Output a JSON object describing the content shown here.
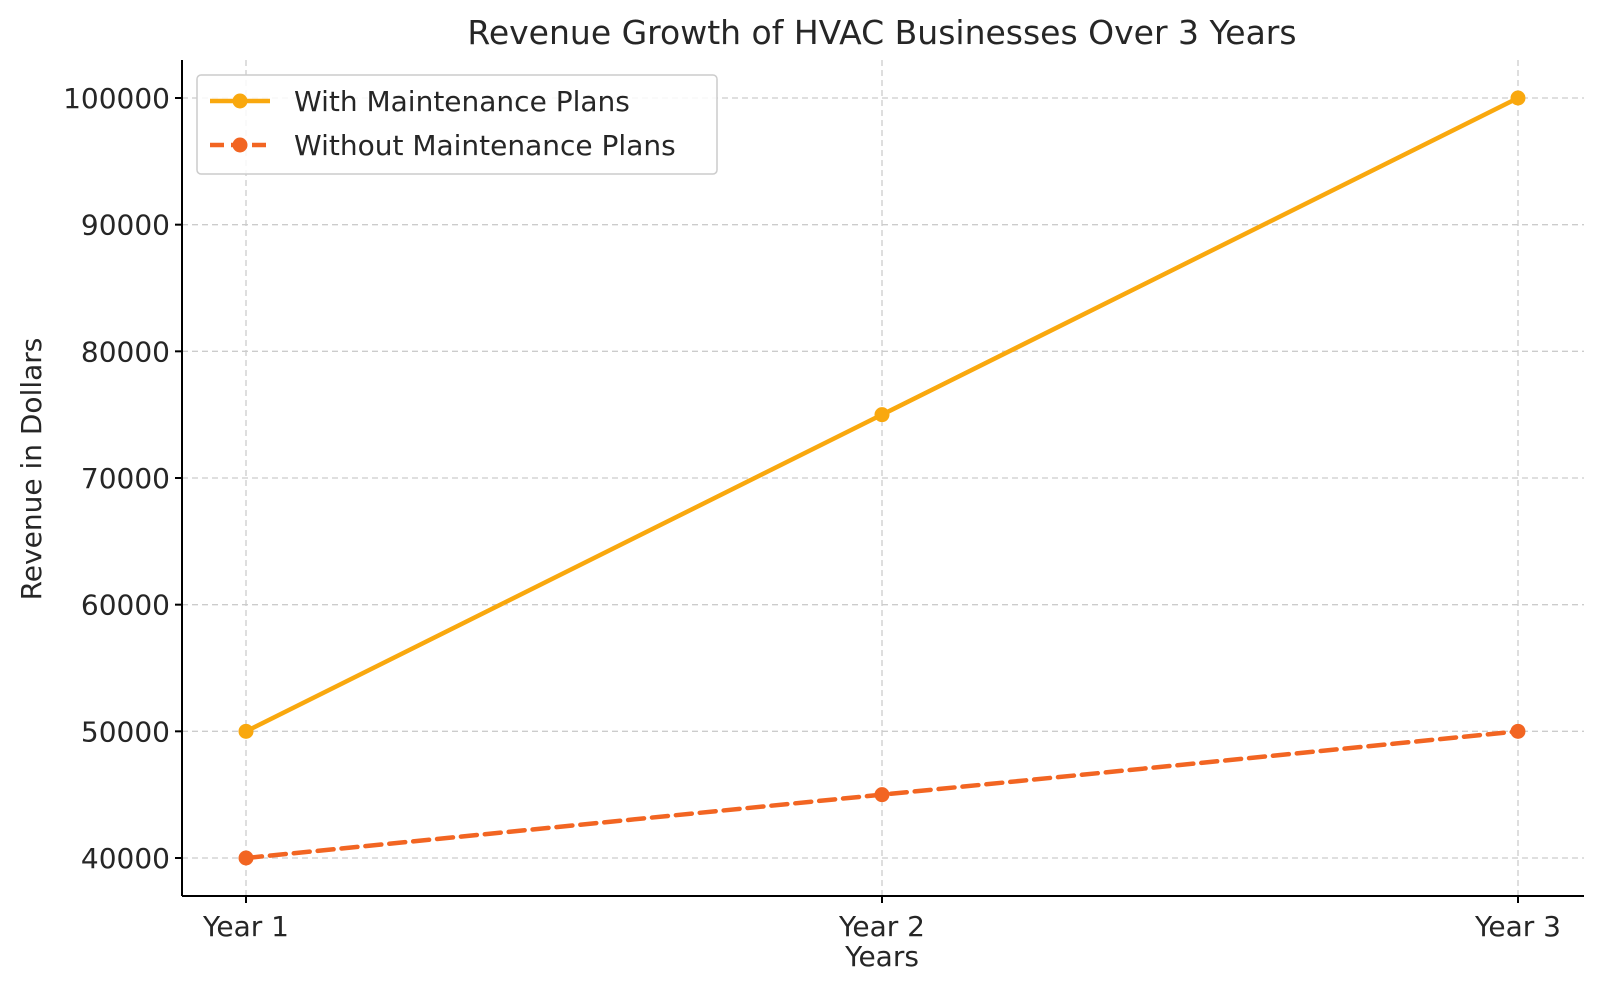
{
  "chart_data": {
    "type": "line",
    "title": "Revenue Growth of HVAC Businesses Over 3 Years",
    "xlabel": "Years",
    "ylabel": "Revenue in Dollars",
    "categories": [
      "Year 1",
      "Year 2",
      "Year 3"
    ],
    "yticks": [
      40000,
      50000,
      60000,
      70000,
      80000,
      90000,
      100000
    ],
    "ylim": [
      37000,
      103000
    ],
    "grid": true,
    "legend_position": "top-left",
    "series": [
      {
        "name": "With Maintenance Plans",
        "values": [
          50000,
          75000,
          100000
        ],
        "color": "#f9a80e",
        "style": "solid",
        "marker": "circle"
      },
      {
        "name": "Without Maintenance Plans",
        "values": [
          40000,
          45000,
          50000
        ],
        "color": "#f26522",
        "style": "dashed",
        "marker": "circle"
      }
    ]
  }
}
